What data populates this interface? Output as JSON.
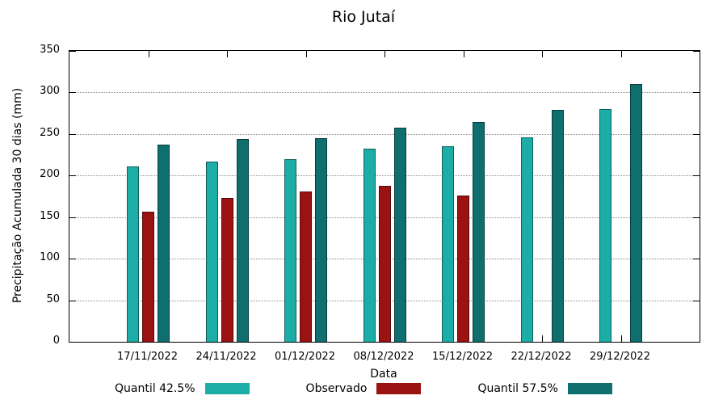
{
  "chart_data": {
    "type": "bar",
    "title": "Rio Jutaí",
    "xlabel": "Data",
    "ylabel": "Precipitação Acumulada 30 dias (mm)",
    "ylim": [
      0,
      350
    ],
    "yticks": [
      0,
      50,
      100,
      150,
      200,
      250,
      300,
      350
    ],
    "grid": true,
    "legend_position": "bottom",
    "categories": [
      "17/11/2022",
      "24/11/2022",
      "01/12/2022",
      "08/12/2022",
      "15/12/2022",
      "22/12/2022",
      "29/12/2022"
    ],
    "series": [
      {
        "name": "Quantil 42.5%",
        "color": "#1CADA6",
        "values": [
          211,
          217,
          220,
          232,
          235,
          246,
          280
        ]
      },
      {
        "name": "Observado",
        "color": "#9B1212",
        "values": [
          157,
          173,
          181,
          188,
          176,
          null,
          null
        ]
      },
      {
        "name": "Quantil 57.5%",
        "color": "#0F6E6E",
        "values": [
          237,
          244,
          245,
          258,
          264,
          279,
          310
        ]
      }
    ]
  }
}
